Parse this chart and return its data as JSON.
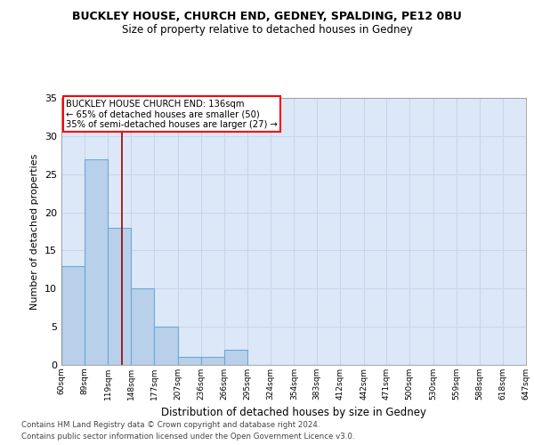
{
  "title": "BUCKLEY HOUSE, CHURCH END, GEDNEY, SPALDING, PE12 0BU",
  "subtitle": "Size of property relative to detached houses in Gedney",
  "xlabel": "Distribution of detached houses by size in Gedney",
  "ylabel": "Number of detached properties",
  "bar_edges": [
    60,
    89,
    119,
    148,
    177,
    207,
    236,
    266,
    295,
    324,
    354,
    383,
    412,
    442,
    471,
    500,
    530,
    559,
    588,
    618,
    647
  ],
  "bar_heights": [
    13,
    27,
    18,
    10,
    5,
    1,
    1,
    2,
    0,
    0,
    0,
    0,
    0,
    0,
    0,
    0,
    0,
    0,
    0,
    0
  ],
  "bar_color": "#b8d0ea",
  "bar_edgecolor": "#6aaad4",
  "bar_linewidth": 0.8,
  "grid_color": "#c8d4e8",
  "bg_color": "#dce8f8",
  "vline_x": 136,
  "vline_color": "#990000",
  "annotation_line1": "BUCKLEY HOUSE CHURCH END: 136sqm",
  "annotation_line2": "← 65% of detached houses are smaller (50)",
  "annotation_line3": "35% of semi-detached houses are larger (27) →",
  "footnote1": "Contains HM Land Registry data © Crown copyright and database right 2024.",
  "footnote2": "Contains public sector information licensed under the Open Government Licence v3.0.",
  "ylim": [
    0,
    35
  ],
  "yticks": [
    0,
    5,
    10,
    15,
    20,
    25,
    30,
    35
  ],
  "tick_labels": [
    "60sqm",
    "89sqm",
    "119sqm",
    "148sqm",
    "177sqm",
    "207sqm",
    "236sqm",
    "266sqm",
    "295sqm",
    "324sqm",
    "354sqm",
    "383sqm",
    "412sqm",
    "442sqm",
    "471sqm",
    "500sqm",
    "530sqm",
    "559sqm",
    "588sqm",
    "618sqm",
    "647sqm"
  ]
}
